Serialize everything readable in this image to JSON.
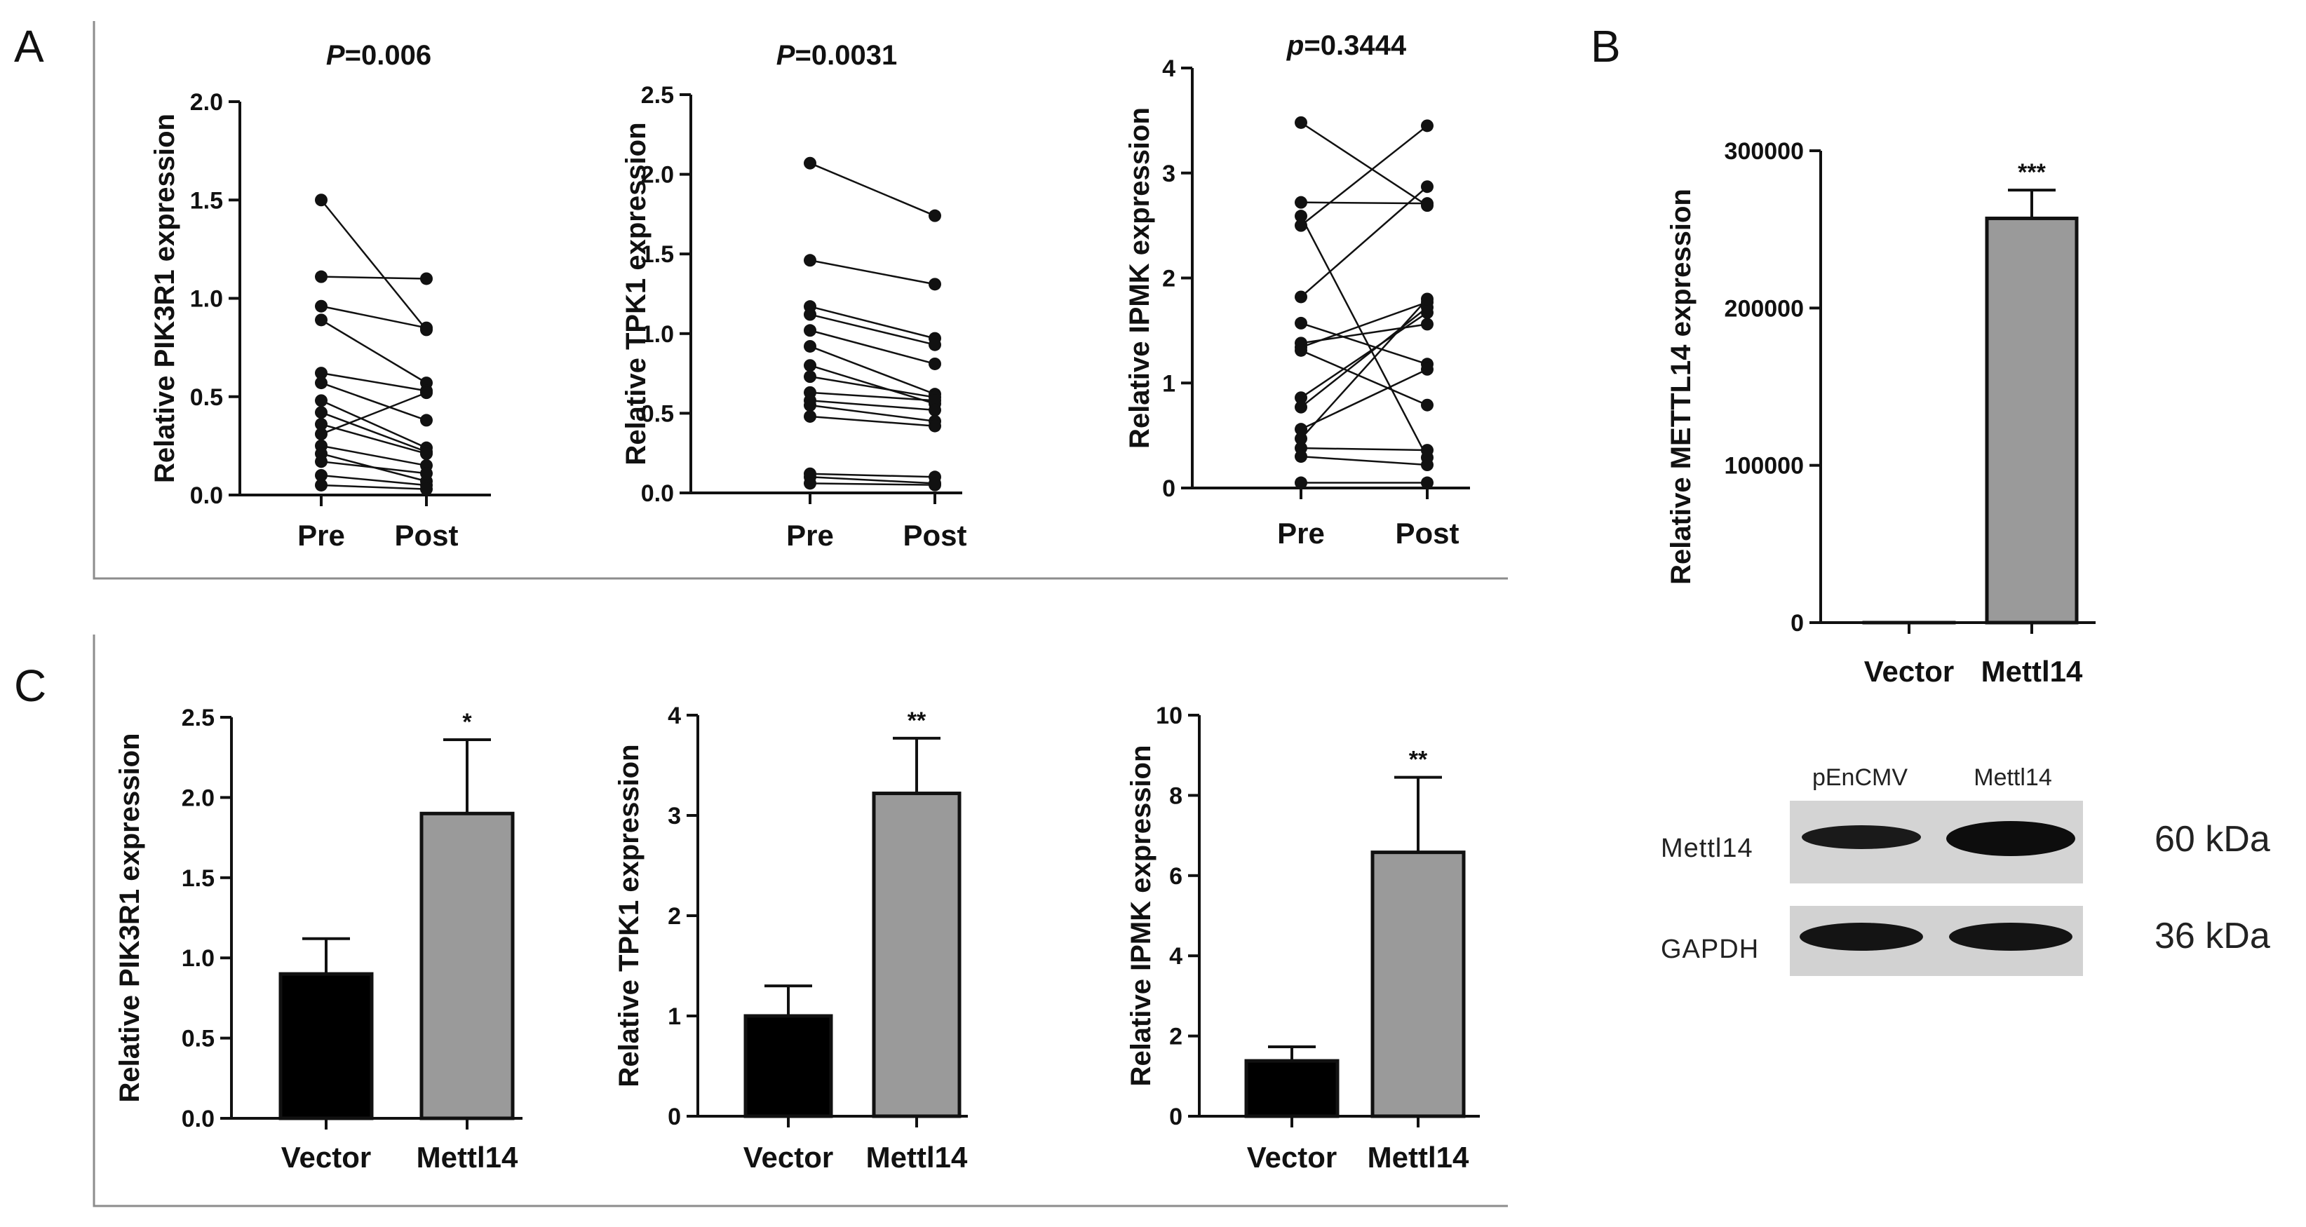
{
  "panel_labels": {
    "a": "A",
    "b": "B",
    "c": "C"
  },
  "colors": {
    "black_bar": "#000000",
    "gray_bar": "#9a9a9a",
    "ink": "#111111",
    "frame": "#8c8c8c"
  },
  "chart_data": [
    {
      "id": "A1",
      "type": "paired_dot",
      "title_prefix": "P",
      "title_value": "=0.006",
      "ylabel": "Relative  PIK3R1 expression",
      "categories": [
        "Pre",
        "Post"
      ],
      "ylim": [
        0,
        2.0
      ],
      "yticks": [
        "0.0",
        "0.5",
        "1.0",
        "1.5",
        "2.0"
      ],
      "ytick_values": [
        0,
        0.5,
        1.0,
        1.5,
        2.0
      ],
      "pairs": [
        [
          1.5,
          0.84
        ],
        [
          1.11,
          1.1
        ],
        [
          0.96,
          0.85
        ],
        [
          0.89,
          0.57
        ],
        [
          0.62,
          0.53
        ],
        [
          0.57,
          0.38
        ],
        [
          0.48,
          0.24
        ],
        [
          0.42,
          0.22
        ],
        [
          0.36,
          0.21
        ],
        [
          0.31,
          0.52
        ],
        [
          0.25,
          0.15
        ],
        [
          0.21,
          0.07
        ],
        [
          0.17,
          0.11
        ],
        [
          0.1,
          0.05
        ],
        [
          0.05,
          0.03
        ]
      ]
    },
    {
      "id": "A2",
      "type": "paired_dot",
      "title_prefix": "P",
      "title_value": "=0.0031",
      "ylabel": "Relative  TPK1 expression",
      "categories": [
        "Pre",
        "Post"
      ],
      "ylim": [
        0,
        2.5
      ],
      "yticks": [
        "0.0",
        "0.5",
        "1.0",
        "1.5",
        "2.0",
        "2.5"
      ],
      "ytick_values": [
        0,
        0.5,
        1.0,
        1.5,
        2.0,
        2.5
      ],
      "pairs": [
        [
          2.07,
          1.74
        ],
        [
          1.46,
          1.31
        ],
        [
          1.17,
          0.97
        ],
        [
          1.12,
          0.93
        ],
        [
          1.02,
          0.81
        ],
        [
          0.92,
          0.62
        ],
        [
          0.8,
          0.56
        ],
        [
          0.73,
          0.6
        ],
        [
          0.63,
          0.58
        ],
        [
          0.58,
          0.52
        ],
        [
          0.55,
          0.45
        ],
        [
          0.48,
          0.42
        ],
        [
          0.12,
          0.1
        ],
        [
          0.1,
          0.06
        ],
        [
          0.06,
          0.05
        ]
      ]
    },
    {
      "id": "A3",
      "type": "paired_dot",
      "title_prefix": "p",
      "title_value": "=0.3444",
      "ylabel": "Relative IPMK expression",
      "categories": [
        "Pre",
        "Post"
      ],
      "ylim": [
        0,
        4
      ],
      "yticks": [
        "0",
        "1",
        "2",
        "3",
        "4"
      ],
      "ytick_values": [
        0,
        1,
        2,
        3,
        4
      ],
      "pairs": [
        [
          3.48,
          2.69
        ],
        [
          2.72,
          2.71
        ],
        [
          2.59,
          0.29
        ],
        [
          2.5,
          3.45
        ],
        [
          1.82,
          2.87
        ],
        [
          1.57,
          1.18
        ],
        [
          1.38,
          1.56
        ],
        [
          1.34,
          1.77
        ],
        [
          1.31,
          0.79
        ],
        [
          0.86,
          1.67
        ],
        [
          0.77,
          1.72
        ],
        [
          0.56,
          1.13
        ],
        [
          0.47,
          1.8
        ],
        [
          0.38,
          0.36
        ],
        [
          0.3,
          0.22
        ],
        [
          0.05,
          0.05
        ]
      ]
    },
    {
      "id": "B",
      "type": "bar",
      "ylabel": "Relative  METTL14 expression",
      "categories": [
        "Vector",
        "Mettl14"
      ],
      "values": [
        1,
        257000
      ],
      "errors": [
        0,
        18000
      ],
      "significance": [
        "",
        "***"
      ],
      "ylim": [
        0,
        300000
      ],
      "yticks": [
        "0",
        "100000",
        "200000",
        "300000"
      ],
      "ytick_values": [
        0,
        100000,
        200000,
        300000
      ]
    },
    {
      "id": "C1",
      "type": "bar",
      "ylabel": "Relative  PIK3R1 expression",
      "categories": [
        "Vector",
        "Mettl14"
      ],
      "values": [
        0.9,
        1.9
      ],
      "errors": [
        0.22,
        0.46
      ],
      "significance": [
        "",
        "*"
      ],
      "ylim": [
        0,
        2.5
      ],
      "yticks": [
        "0.0",
        "0.5",
        "1.0",
        "1.5",
        "2.0",
        "2.5"
      ],
      "ytick_values": [
        0,
        0.5,
        1.0,
        1.5,
        2.0,
        2.5
      ]
    },
    {
      "id": "C2",
      "type": "bar",
      "ylabel": "Relative  TPK1 expression",
      "categories": [
        "Vector",
        "Mettl14"
      ],
      "values": [
        1.0,
        3.22
      ],
      "errors": [
        0.3,
        0.55
      ],
      "significance": [
        "",
        "**"
      ],
      "ylim": [
        0,
        4
      ],
      "yticks": [
        "0",
        "1",
        "2",
        "3",
        "4"
      ],
      "ytick_values": [
        0,
        1,
        2,
        3,
        4
      ]
    },
    {
      "id": "C3",
      "type": "bar",
      "ylabel": "Relative  IPMK expression",
      "categories": [
        "Vector",
        "Mettl14"
      ],
      "values": [
        1.38,
        6.58
      ],
      "errors": [
        0.35,
        1.87
      ],
      "significance": [
        "",
        "**"
      ],
      "ylim": [
        0,
        10
      ],
      "yticks": [
        "0",
        "2",
        "4",
        "6",
        "8",
        "10"
      ],
      "ytick_values": [
        0,
        2,
        4,
        6,
        8,
        10
      ]
    }
  ],
  "blot": {
    "lanes": [
      "pEnCMV",
      "Mettl14"
    ],
    "rows": [
      {
        "label": "Mettl14",
        "size": "60 kDa"
      },
      {
        "label": "GAPDH",
        "size": "36 kDa"
      }
    ]
  }
}
